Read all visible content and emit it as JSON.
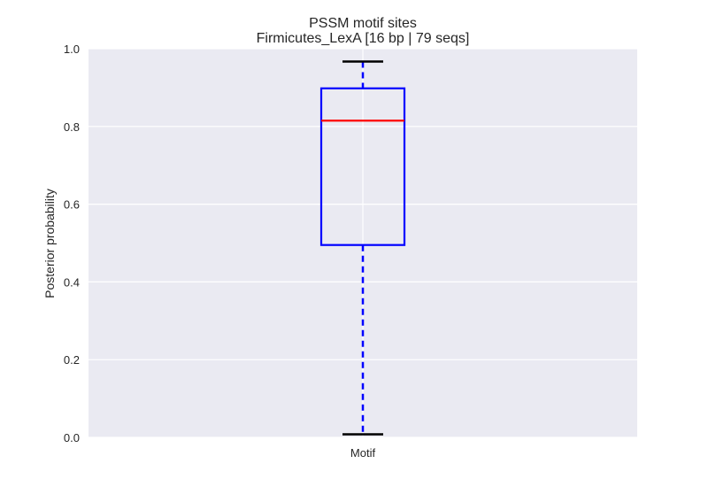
{
  "chart_data": {
    "type": "box",
    "title": "PSSM motif sites",
    "subtitle": "Firmicutes_LexA [16 bp | 79 seqs]",
    "ylabel": "Posterior probability",
    "xlabel": "",
    "ylim": [
      0.0,
      1.0
    ],
    "y_ticks": [
      "0.0",
      "0.2",
      "0.4",
      "0.6",
      "0.8",
      "1.0"
    ],
    "grid": true,
    "categories": [
      "Motif"
    ],
    "boxes": [
      {
        "category": "Motif",
        "whisker_low": 0.008,
        "q1": 0.495,
        "median": 0.815,
        "q3": 0.898,
        "whisker_high": 0.967
      }
    ],
    "colors": {
      "background": "#eaeaf2",
      "grid": "#ffffff",
      "box": "#0000ff",
      "median": "#ff0000",
      "caps": "#000000"
    }
  }
}
